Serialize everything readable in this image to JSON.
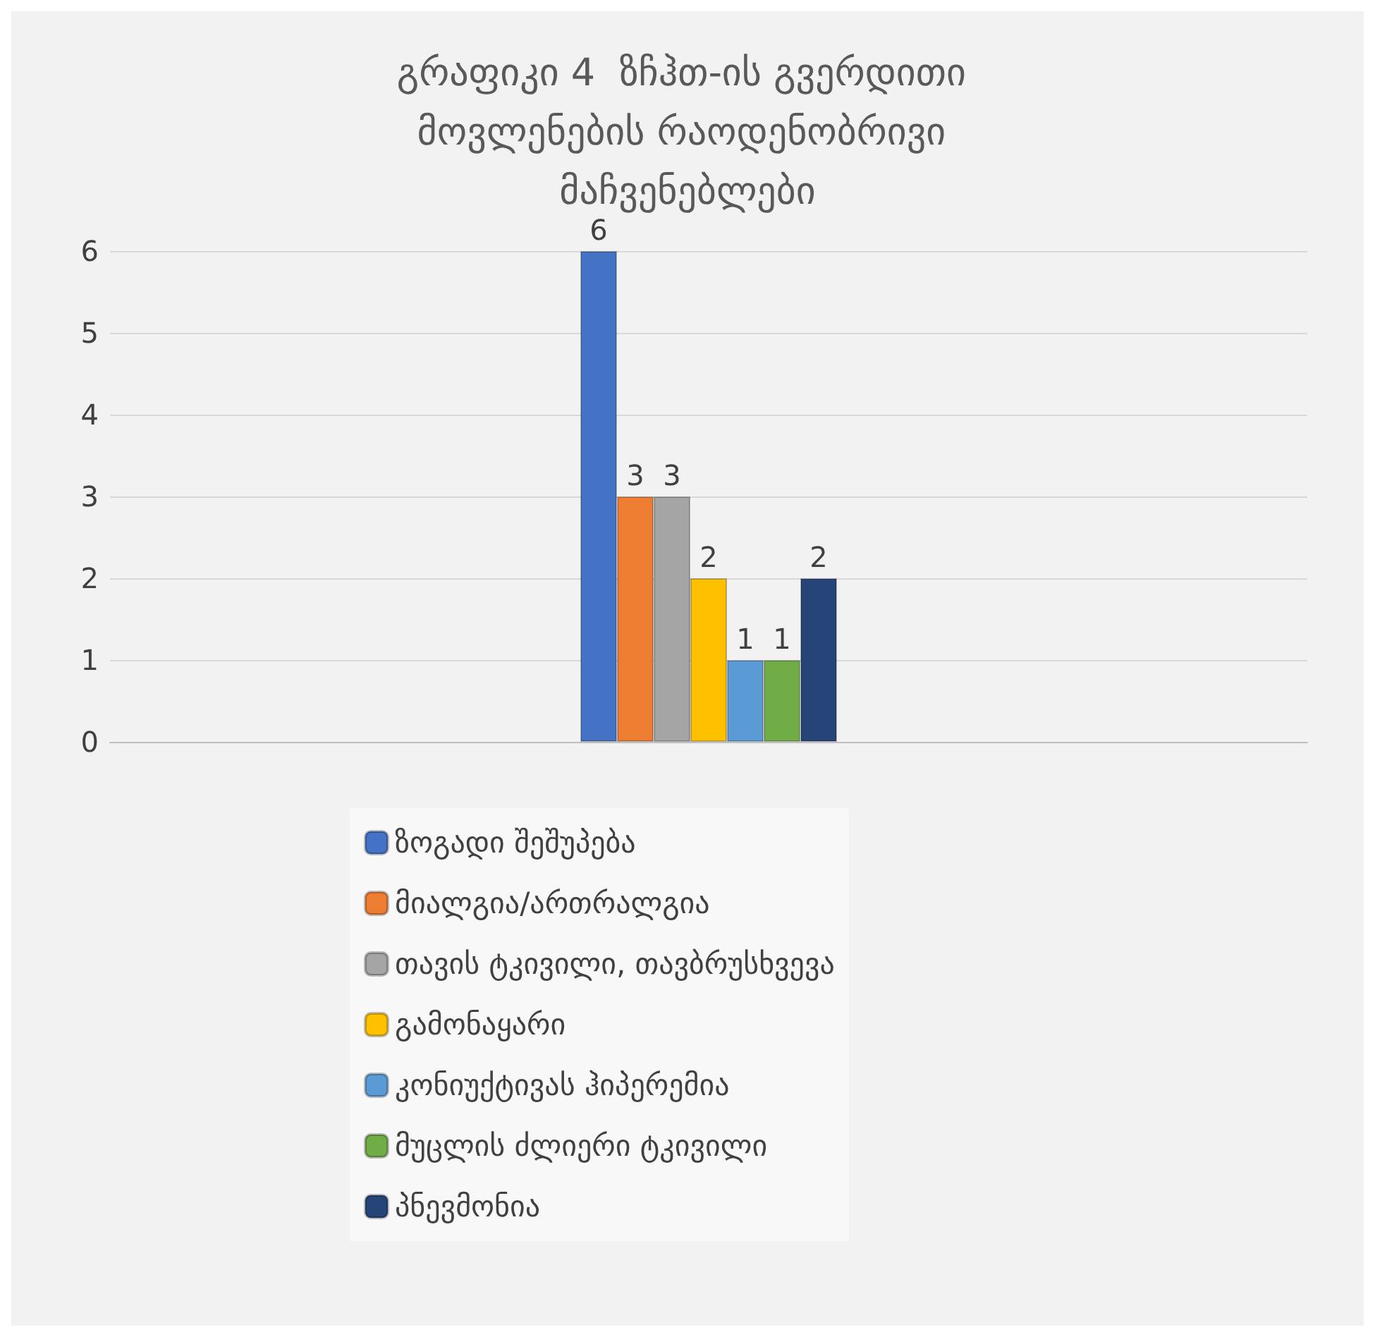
{
  "chart_data": {
    "type": "bar",
    "title": "გრაფიკი 4  ზჩჰთ-ის გვერდითი მოვლენების რაოდენობრივი მაჩვენებლები",
    "categories": [
      null
    ],
    "series": [
      {
        "name": "ზოგადი შეშუპება",
        "color": "#4472c4",
        "values": [
          6
        ]
      },
      {
        "name": "მიალგია/ართრალგია",
        "color": "#ed7d31",
        "values": [
          3
        ]
      },
      {
        "name": "თავის ტკივილი, თავბრუსხვევა",
        "color": "#a5a5a5",
        "values": [
          3
        ]
      },
      {
        "name": "გამონაყარი",
        "color": "#ffc000",
        "values": [
          2
        ]
      },
      {
        "name": "კონიუქტივას ჰიპერემია",
        "color": "#5b9bd5",
        "values": [
          1
        ]
      },
      {
        "name": "მუცლის ძლიერი ტკივილი",
        "color": "#70ad47",
        "values": [
          1
        ]
      },
      {
        "name": "პნევმონია",
        "color": "#264478",
        "values": [
          2
        ]
      }
    ],
    "ylim": [
      0,
      6
    ],
    "yticks": [
      0,
      1,
      2,
      3,
      4,
      5,
      6
    ],
    "grid": "y",
    "legend": "bottom",
    "data_labels": true
  }
}
